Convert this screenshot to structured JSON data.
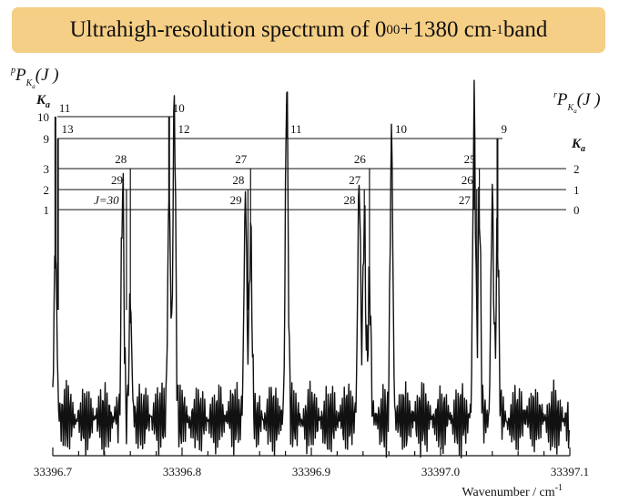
{
  "title": {
    "prefix": "Ultrahigh-resolution spectrum of 0",
    "sub": "0",
    "sup": "0",
    "mid": "+1380 cm",
    "exp": "-1",
    "suffix": " band"
  },
  "chart_data": {
    "type": "line",
    "title": "Ultrahigh-resolution spectrum of 0_0^0+1380 cm-1 band",
    "xlabel": "Wavenumber / cm",
    "xlabel_exp": "-1",
    "ylabel": "",
    "xlim": [
      33396.7,
      33397.1
    ],
    "x_ticks": [
      33396.7,
      33396.8,
      33396.9,
      33397.0,
      33397.1
    ],
    "x_tick_labels": [
      "33396.7",
      "33396.8",
      "33396.9",
      "33397.0",
      "33397.1"
    ],
    "grid": false,
    "series": [
      {
        "style": "spectrum trace",
        "peaks": [
          {
            "x": 33396.702,
            "intensity": 0.44
          },
          {
            "x": 33396.754,
            "intensity": 0.6
          },
          {
            "x": 33396.76,
            "intensity": 0.3
          },
          {
            "x": 33396.79,
            "intensity": 0.58
          },
          {
            "x": 33396.794,
            "intensity": 0.82
          },
          {
            "x": 33396.849,
            "intensity": 0.57
          },
          {
            "x": 33396.853,
            "intensity": 0.48
          },
          {
            "x": 33396.881,
            "intensity": 0.86
          },
          {
            "x": 33396.937,
            "intensity": 0.62
          },
          {
            "x": 33396.941,
            "intensity": 0.52
          },
          {
            "x": 33396.945,
            "intensity": 0.36
          },
          {
            "x": 33396.962,
            "intensity": 0.72
          },
          {
            "x": 33397.026,
            "intensity": 0.81
          },
          {
            "x": 33397.03,
            "intensity": 0.55
          },
          {
            "x": 33397.04,
            "intensity": 0.57
          },
          {
            "x": 33397.044,
            "intensity": 0.48
          }
        ]
      }
    ],
    "left_branch_label": {
      "p": "P",
      "p_sup": "p",
      "sub": "K",
      "sub_sub": "a",
      "arg": "(J )"
    },
    "right_branch_label": {
      "p": "P",
      "p_sup": "r",
      "sub": "K",
      "sub_sub": "a",
      "arg": "(J )"
    },
    "ka_label": "K",
    "ka_sub": "a",
    "left_levels": [
      "10",
      "9",
      "3",
      "2",
      "1"
    ],
    "right_levels": [
      "2",
      "1",
      "0"
    ],
    "assignments": [
      {
        "label": "11",
        "x": 33396.702
      },
      {
        "label": "10",
        "x": 33396.79
      },
      {
        "label": "13",
        "x": 33396.704
      },
      {
        "label": "12",
        "x": 33396.794
      },
      {
        "label": "11",
        "x": 33396.881
      },
      {
        "label": "10",
        "x": 33396.962
      },
      {
        "label": "9",
        "x": 33397.044
      },
      {
        "label": "28",
        "x": 33396.76
      },
      {
        "label": "27",
        "x": 33396.853
      },
      {
        "label": "26",
        "x": 33396.945
      },
      {
        "label": "25",
        "x": 33397.03
      },
      {
        "label": "29",
        "x": 33396.757
      },
      {
        "label": "28",
        "x": 33396.851
      },
      {
        "label": "27",
        "x": 33396.941
      },
      {
        "label": "26",
        "x": 33397.028
      },
      {
        "label": "J=30",
        "x": 33396.754
      },
      {
        "label": "29",
        "x": 33396.849
      },
      {
        "label": "28",
        "x": 33396.937
      },
      {
        "label": "27",
        "x": 33397.026
      }
    ]
  }
}
